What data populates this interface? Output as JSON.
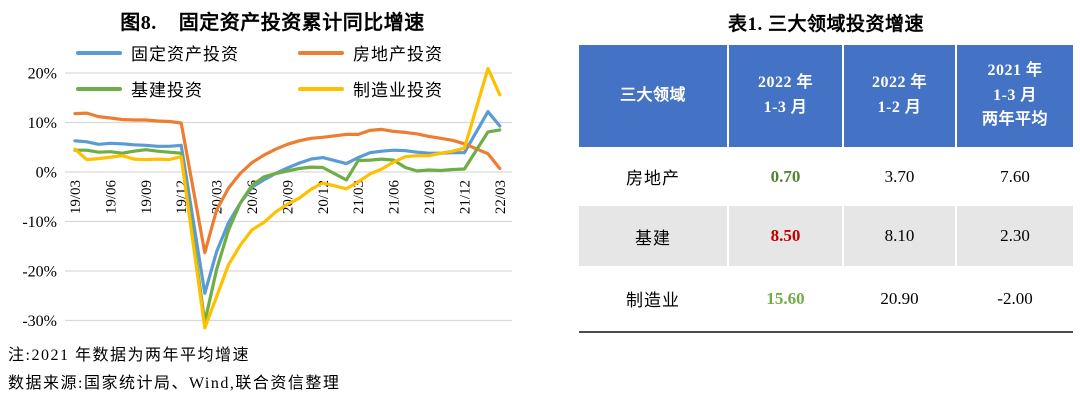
{
  "figure": {
    "label": "图8.",
    "title": "固定资产投资累计同比增速",
    "note1": "注:2021 年数据为两年平均增速",
    "note2": "数据来源:国家统计局、Wind,联合资信整理"
  },
  "chart_data": {
    "type": "line",
    "title": "固定资产投资累计同比增速",
    "grid": true,
    "legend_position": "top",
    "ylim": [
      -30,
      20
    ],
    "y_tick_values": [
      20,
      10,
      0,
      -10,
      -20,
      -30
    ],
    "y_tick_labels": [
      "20%",
      "10%",
      "0%",
      "-10%",
      "-20%",
      "-30%"
    ],
    "x_tick_index": [
      0,
      3,
      6,
      9,
      12,
      15,
      18,
      21,
      24,
      27,
      30,
      33,
      36
    ],
    "x_tick_labels": [
      "19/03",
      "19/06",
      "19/09",
      "19/12",
      "20/03",
      "20/06",
      "20/09",
      "20/12",
      "21/03",
      "21/06",
      "21/09",
      "21/12",
      "22/03"
    ],
    "x": [
      "19/03",
      "19/04",
      "19/05",
      "19/06",
      "19/07",
      "19/08",
      "19/09",
      "19/10",
      "19/11",
      "19/12",
      "20/02",
      "20/03",
      "20/04",
      "20/05",
      "20/06",
      "20/07",
      "20/08",
      "20/09",
      "20/10",
      "20/11",
      "20/12",
      "21/02",
      "21/03",
      "21/04",
      "21/05",
      "21/06",
      "21/07",
      "21/08",
      "21/09",
      "21/10",
      "21/11",
      "21/12",
      "22/02",
      "22/03"
    ],
    "x_index": [
      0,
      1,
      2,
      3,
      4,
      5,
      6,
      7,
      8,
      9,
      11,
      12,
      13,
      14,
      15,
      16,
      17,
      18,
      19,
      20,
      21,
      23,
      24,
      25,
      26,
      27,
      28,
      29,
      30,
      31,
      32,
      33,
      35,
      36
    ],
    "series": [
      {
        "name": "固定资产投资",
        "color": "#5B9BD5",
        "values": [
          6.3,
          6.1,
          5.6,
          5.8,
          5.7,
          5.5,
          5.4,
          5.2,
          5.2,
          5.4,
          -24.5,
          -16.1,
          -10.3,
          -6.3,
          -3.1,
          -1.6,
          -0.3,
          0.8,
          1.8,
          2.6,
          2.9,
          1.7,
          2.9,
          3.9,
          4.2,
          4.4,
          4.3,
          4.0,
          3.8,
          3.8,
          3.9,
          3.9,
          12.2,
          9.3
        ]
      },
      {
        "name": "房地产投资",
        "color": "#ED7D31",
        "values": [
          11.8,
          11.9,
          11.2,
          10.9,
          10.6,
          10.5,
          10.5,
          10.3,
          10.2,
          9.9,
          -16.3,
          -7.7,
          -3.3,
          -0.3,
          1.9,
          3.4,
          4.6,
          5.6,
          6.3,
          6.8,
          7.0,
          7.6,
          7.6,
          8.4,
          8.6,
          8.2,
          8.0,
          7.7,
          7.2,
          6.8,
          6.4,
          5.7,
          3.7,
          0.7
        ]
      },
      {
        "name": "基建投资",
        "color": "#70AD47",
        "values": [
          4.4,
          4.4,
          4.0,
          4.1,
          3.8,
          4.2,
          4.5,
          4.2,
          4.0,
          3.8,
          -30.3,
          -19.7,
          -11.8,
          -6.3,
          -2.7,
          -1.0,
          -0.3,
          0.2,
          0.7,
          1.0,
          0.9,
          -1.6,
          2.3,
          2.4,
          2.6,
          2.4,
          0.9,
          0.2,
          0.4,
          0.3,
          0.5,
          0.6,
          8.1,
          8.5
        ]
      },
      {
        "name": "制造业投资",
        "color": "#FFC000",
        "values": [
          4.6,
          2.5,
          2.7,
          3.0,
          3.3,
          2.6,
          2.5,
          2.6,
          2.5,
          3.1,
          -31.5,
          -25.2,
          -18.8,
          -14.8,
          -11.7,
          -10.2,
          -8.1,
          -6.5,
          -5.3,
          -3.5,
          -2.2,
          -3.4,
          -2.0,
          -0.4,
          0.6,
          2.0,
          3.1,
          3.3,
          3.3,
          3.8,
          4.2,
          4.8,
          20.9,
          15.6
        ]
      }
    ],
    "gridline_color": "#D9D9D9"
  },
  "table": {
    "title": "表1. 三大领域投资增速",
    "header_bg": "#4472C4",
    "stripe_color": "#E7E6E6",
    "columns": [
      {
        "lines": [
          "三大领域"
        ]
      },
      {
        "lines": [
          "2022 年",
          "1-3 月"
        ]
      },
      {
        "lines": [
          "2022 年",
          "1-2 月"
        ]
      },
      {
        "lines": [
          "2021 年",
          "1-3 月",
          "两年平均"
        ]
      }
    ],
    "rows": [
      {
        "label": "房地产",
        "v1": "0.70",
        "v1_color": "#548235",
        "v2": "3.70",
        "v3": "7.60",
        "shaded": false
      },
      {
        "label": "基建",
        "v1": "8.50",
        "v1_color": "#C00000",
        "v2": "8.10",
        "v3": "2.30",
        "shaded": true
      },
      {
        "label": "制造业",
        "v1": "15.60",
        "v1_color": "#70AD47",
        "v2": "20.90",
        "v3": "-2.00",
        "shaded": false
      }
    ]
  }
}
